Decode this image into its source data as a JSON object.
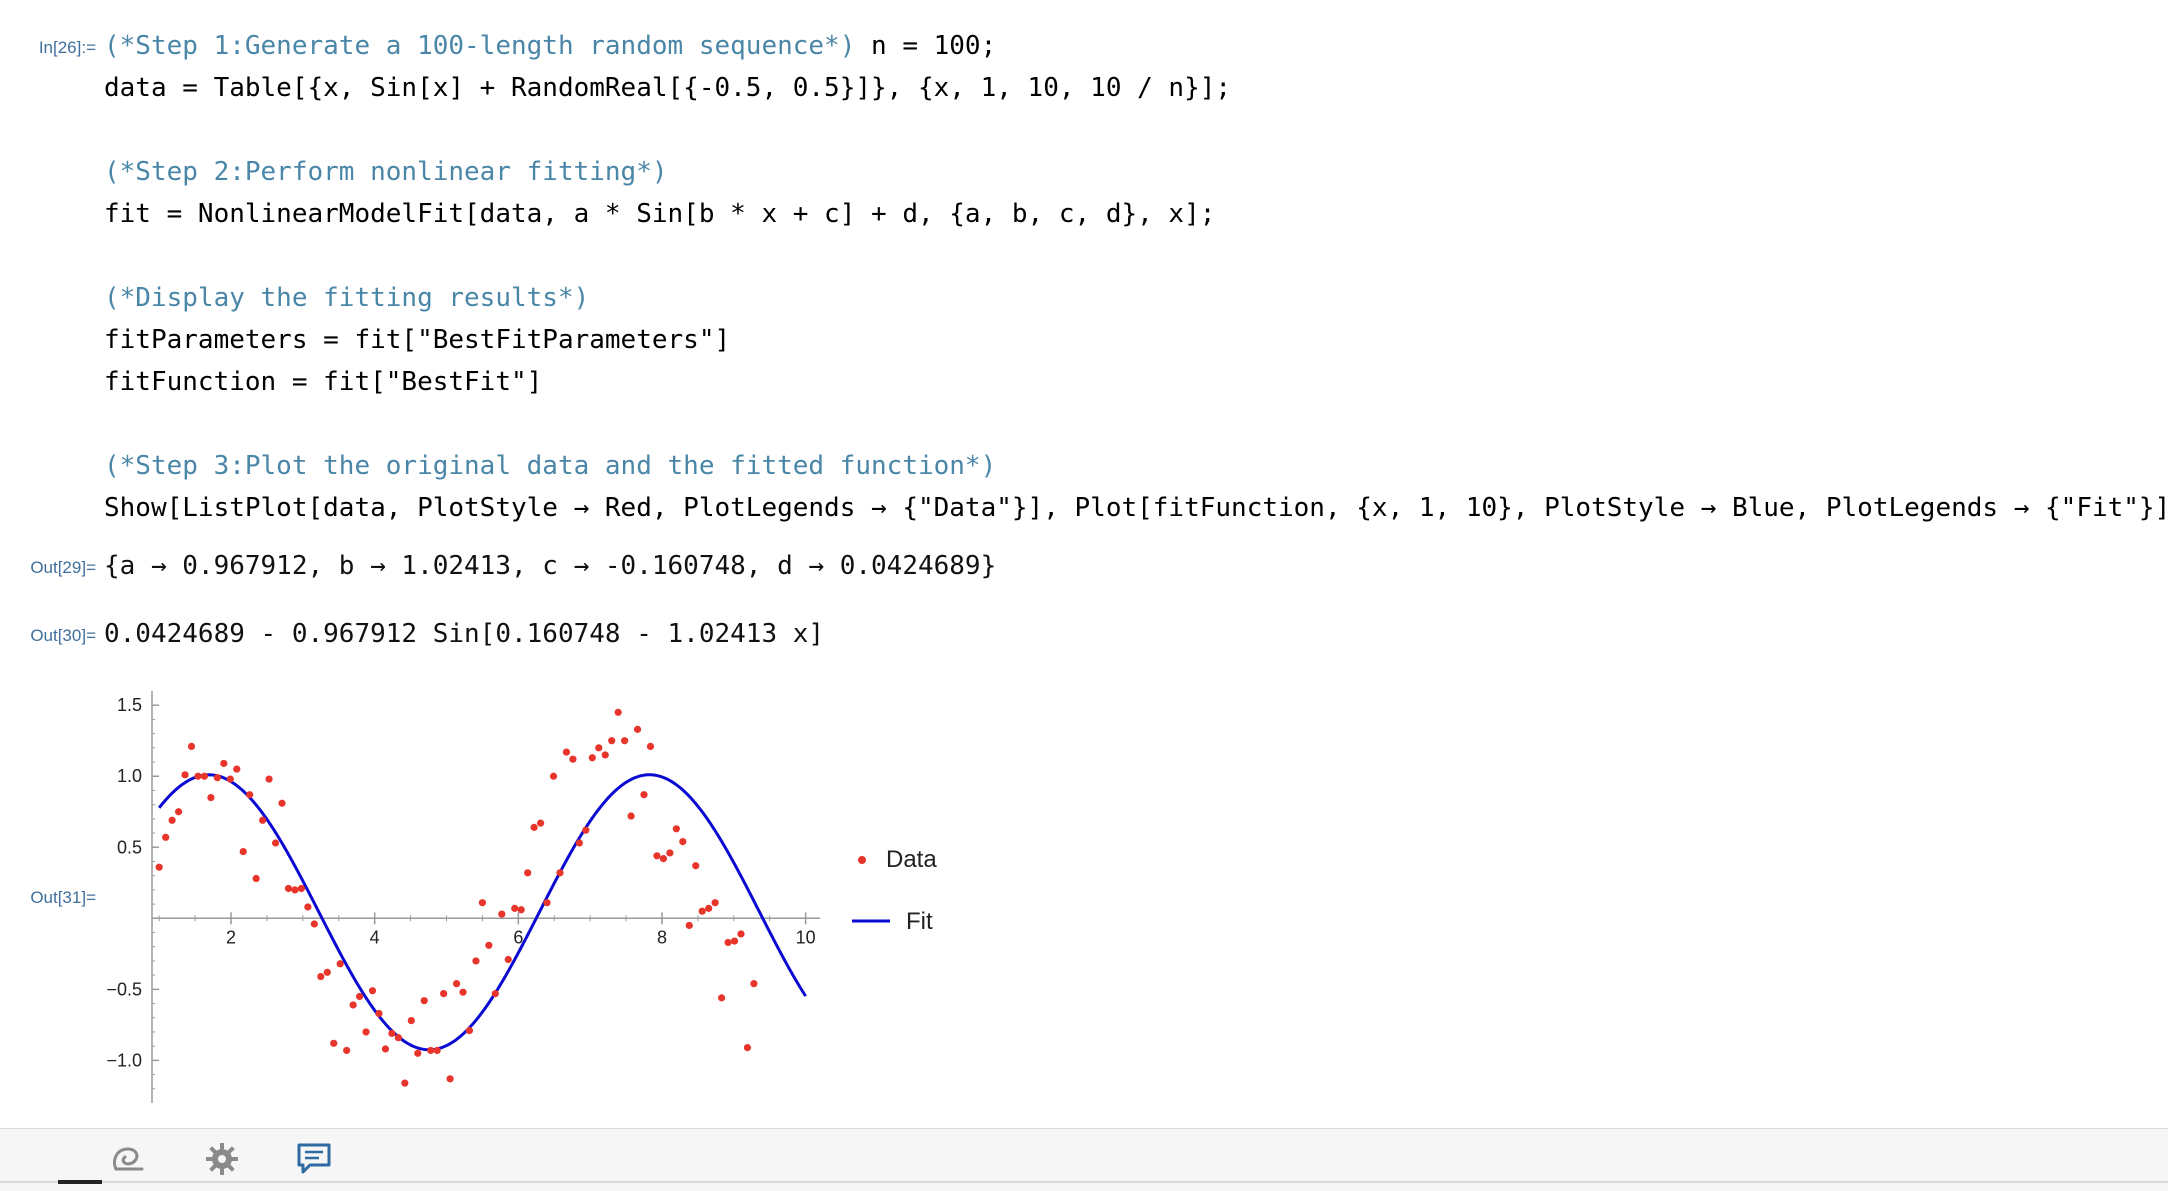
{
  "labels": {
    "in26": "In[26]:=",
    "out29": "Out[29]=",
    "out30": "Out[30]=",
    "out31": "Out[31]="
  },
  "code": {
    "l1_comment": "(*Step 1:Generate a 100-length random sequence*)",
    "l1_code": "n = 100;",
    "l2": "data = Table[{x, Sin[x] + RandomReal[{-0.5, 0.5}]}, {x, 1, 10, 10 / n}];",
    "l3_comment": "(*Step 2:Perform nonlinear fitting*)",
    "l4": "fit = NonlinearModelFit[data, a * Sin[b * x + c] + d, {a, b, c, d}, x];",
    "l5_comment": "(*Display the fitting results*)",
    "l6": "fitParameters = fit[\"BestFitParameters\"]",
    "l7": "fitFunction = fit[\"BestFit\"]",
    "l8_comment": "(*Step 3:Plot the original data and the fitted function*)",
    "l9": "Show[ListPlot[data, PlotStyle → Red, PlotLegends → {\"Data\"}], Plot[fitFunction, {x, 1, 10}, PlotStyle → Blue, PlotLegends → {\"Fit\"}]]"
  },
  "outputs": {
    "out29": "{a → 0.967912, b → 1.02413, c → -0.160748, d → 0.0424689}",
    "out30": "0.0424689 - 0.967912 Sin[0.160748 - 1.02413 x]"
  },
  "colors": {
    "data_points": "#e8352b",
    "fit_line": "#0a0ad2",
    "axis": "#999999"
  },
  "chart_data": {
    "type": "scatter",
    "xlim": [
      0.9,
      10.2
    ],
    "ylim": [
      -1.3,
      1.6
    ],
    "x_ticks": [
      2,
      4,
      6,
      8,
      10
    ],
    "y_ticks": [
      -1.0,
      -0.5,
      0.5,
      1.0,
      1.5
    ],
    "x_tick_labels": [
      "2",
      "4",
      "6",
      "8",
      "10"
    ],
    "y_tick_labels": [
      "−1.0",
      "−0.5",
      "0.5",
      "1.0",
      "1.5"
    ],
    "legend_position": "right",
    "series": [
      {
        "name": "Data",
        "kind": "points",
        "points": [
          [
            1.0,
            0.36
          ],
          [
            1.09,
            0.57
          ],
          [
            1.18,
            0.69
          ],
          [
            1.27,
            0.75
          ],
          [
            1.36,
            1.01
          ],
          [
            1.45,
            1.21
          ],
          [
            1.54,
            1.0
          ],
          [
            1.63,
            1.0
          ],
          [
            1.72,
            0.85
          ],
          [
            1.81,
            0.99
          ],
          [
            1.9,
            1.09
          ],
          [
            1.99,
            0.98
          ],
          [
            2.08,
            1.05
          ],
          [
            2.17,
            0.47
          ],
          [
            2.26,
            0.87
          ],
          [
            2.35,
            0.28
          ],
          [
            2.44,
            0.69
          ],
          [
            2.53,
            0.98
          ],
          [
            2.62,
            0.53
          ],
          [
            2.71,
            0.81
          ],
          [
            2.8,
            0.21
          ],
          [
            2.89,
            0.2
          ],
          [
            2.98,
            0.21
          ],
          [
            3.07,
            0.08
          ],
          [
            3.16,
            -0.04
          ],
          [
            3.25,
            -0.41
          ],
          [
            3.34,
            -0.38
          ],
          [
            3.43,
            -0.88
          ],
          [
            3.52,
            -0.32
          ],
          [
            3.61,
            -0.93
          ],
          [
            3.7,
            -0.61
          ],
          [
            3.79,
            -0.55
          ],
          [
            3.88,
            -0.8
          ],
          [
            3.97,
            -0.51
          ],
          [
            4.06,
            -0.67
          ],
          [
            4.15,
            -0.92
          ],
          [
            4.24,
            -0.81
          ],
          [
            4.33,
            -0.84
          ],
          [
            4.42,
            -1.16
          ],
          [
            4.51,
            -0.72
          ],
          [
            4.6,
            -0.95
          ],
          [
            4.69,
            -0.58
          ],
          [
            4.78,
            -0.93
          ],
          [
            4.87,
            -0.93
          ],
          [
            4.96,
            -0.53
          ],
          [
            5.05,
            -1.13
          ],
          [
            5.14,
            -0.46
          ],
          [
            5.23,
            -0.52
          ],
          [
            5.32,
            -0.79
          ],
          [
            5.41,
            -0.3
          ],
          [
            5.5,
            0.11
          ],
          [
            5.59,
            -0.19
          ],
          [
            5.68,
            -0.53
          ],
          [
            5.77,
            0.03
          ],
          [
            5.86,
            -0.29
          ],
          [
            5.95,
            0.07
          ],
          [
            6.04,
            0.06
          ],
          [
            6.13,
            0.32
          ],
          [
            6.22,
            0.64
          ],
          [
            6.31,
            0.67
          ],
          [
            6.4,
            0.11
          ],
          [
            6.49,
            1.0
          ],
          [
            6.58,
            0.32
          ],
          [
            6.67,
            1.17
          ],
          [
            6.76,
            1.12
          ],
          [
            6.85,
            0.53
          ],
          [
            6.94,
            0.62
          ],
          [
            7.03,
            1.13
          ],
          [
            7.12,
            1.2
          ],
          [
            7.21,
            1.15
          ],
          [
            7.3,
            1.25
          ],
          [
            7.39,
            1.45
          ],
          [
            7.48,
            1.25
          ],
          [
            7.57,
            0.72
          ],
          [
            7.66,
            1.33
          ],
          [
            7.75,
            0.87
          ],
          [
            7.84,
            1.21
          ],
          [
            7.93,
            0.44
          ],
          [
            8.02,
            0.42
          ],
          [
            8.11,
            0.46
          ],
          [
            8.2,
            0.63
          ],
          [
            8.29,
            0.54
          ],
          [
            8.38,
            -0.05
          ],
          [
            8.47,
            0.37
          ],
          [
            8.56,
            0.05
          ],
          [
            8.65,
            0.07
          ],
          [
            8.74,
            0.11
          ],
          [
            8.83,
            -0.56
          ],
          [
            8.92,
            -0.17
          ],
          [
            9.01,
            -0.16
          ],
          [
            9.1,
            -0.11
          ],
          [
            9.19,
            -0.91
          ],
          [
            9.28,
            -0.46
          ]
        ]
      },
      {
        "name": "Fit",
        "kind": "line",
        "function": "0.0424689 - 0.967912 Sin[0.160748 - 1.02413 x]",
        "params": {
          "a": 0.967912,
          "b": 1.02413,
          "c": -0.160748,
          "d": 0.0424689
        },
        "x_range": [
          1,
          10
        ]
      }
    ]
  },
  "toolbar": {
    "icons": [
      "swirl-icon",
      "gear-icon",
      "chat-icon"
    ]
  }
}
